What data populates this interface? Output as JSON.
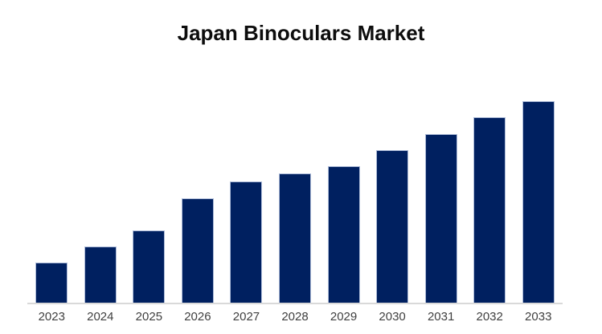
{
  "title": "Japan Binoculars Market",
  "colors": {
    "bar_fill": "#002060",
    "bar_border": "#aebcd9",
    "axis_line": "#d9d9d9",
    "title_text": "#0d0d0d",
    "tick_label_text": "#3f3f3f",
    "background": "#ffffff"
  },
  "chart_data": {
    "type": "bar",
    "title": "Japan Binoculars Market",
    "categories": [
      "2023",
      "2024",
      "2025",
      "2026",
      "2027",
      "2028",
      "2029",
      "2030",
      "2031",
      "2032",
      "2033"
    ],
    "values": [
      50,
      70,
      90,
      130,
      151,
      161,
      170,
      190,
      210,
      231,
      251
    ],
    "units_note": "no y-axis or data labels shown; values are proportional bar heights (px)",
    "xlabel": "",
    "ylabel": "",
    "ylim": [
      0,
      277
    ],
    "grid": false,
    "legend": false,
    "y_axis_visible": false,
    "x_axis_line_visible": true
  }
}
